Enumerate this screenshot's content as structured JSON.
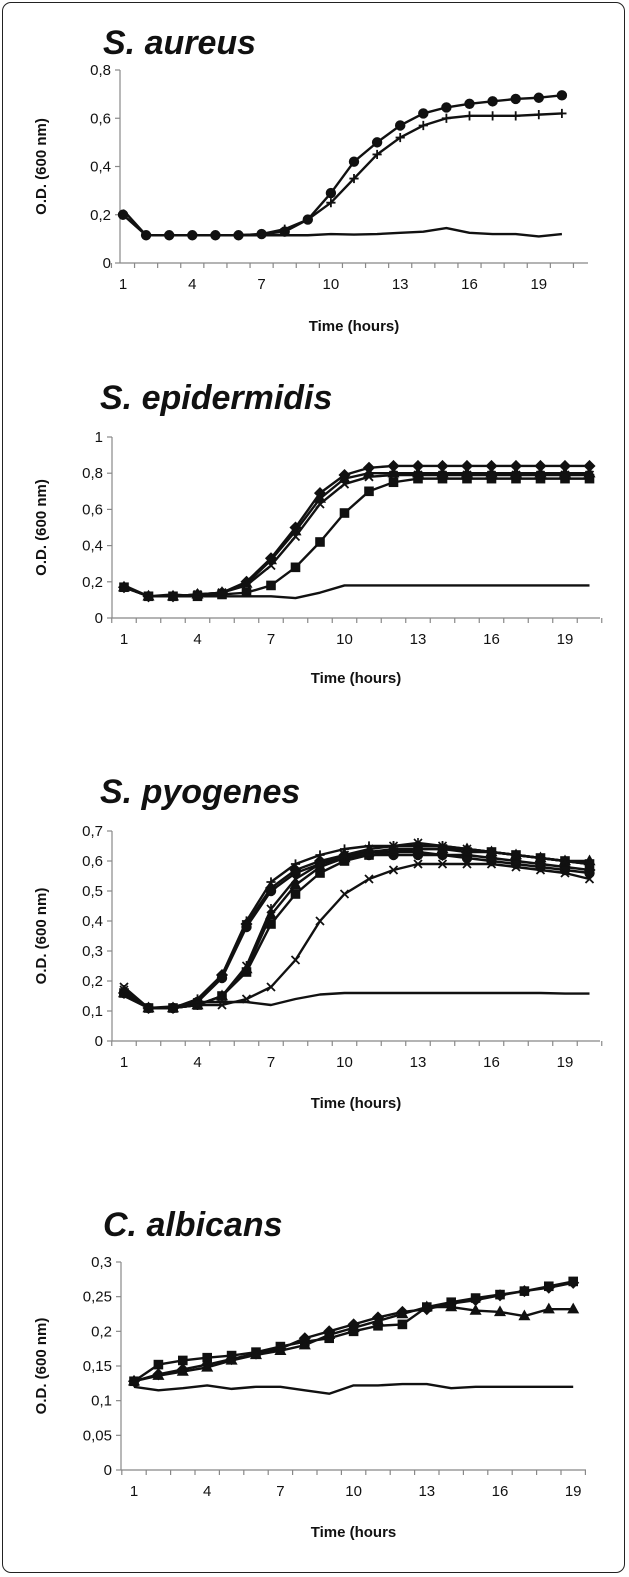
{
  "chart_data": [
    {
      "type": "line",
      "title": "S. aureus",
      "xlabel": "Time (hours)",
      "ylabel": "O.D. (600 nm)",
      "x": [
        1,
        2,
        3,
        4,
        5,
        6,
        7,
        8,
        9,
        10,
        11,
        12,
        13,
        14,
        15,
        16,
        17,
        18,
        19,
        20
      ],
      "xticks": [
        "1",
        "4",
        "7",
        "10",
        "13",
        "16",
        "19"
      ],
      "yticks": [
        "0",
        "0,2",
        "0,4",
        "0,6",
        "0,8"
      ],
      "ylim": [
        0,
        0.8
      ],
      "grid": false,
      "series": [
        {
          "marker": "circle",
          "values": [
            0.2,
            0.115,
            0.115,
            0.115,
            0.115,
            0.115,
            0.12,
            0.13,
            0.18,
            0.29,
            0.42,
            0.5,
            0.57,
            0.62,
            0.645,
            0.66,
            0.67,
            0.68,
            0.685,
            0.695
          ]
        },
        {
          "marker": "plus",
          "values": [
            0.2,
            0.115,
            0.115,
            0.115,
            0.115,
            0.115,
            0.12,
            0.14,
            0.18,
            0.25,
            0.35,
            0.45,
            0.52,
            0.57,
            0.6,
            0.61,
            0.61,
            0.61,
            0.615,
            0.62
          ]
        },
        {
          "marker": "none",
          "values": [
            0.22,
            0.115,
            0.115,
            0.115,
            0.115,
            0.115,
            0.115,
            0.115,
            0.115,
            0.12,
            0.118,
            0.12,
            0.125,
            0.13,
            0.145,
            0.125,
            0.12,
            0.12,
            0.11,
            0.12
          ]
        }
      ]
    },
    {
      "type": "line",
      "title": "S. epidermidis",
      "xlabel": "Time (hours)",
      "ylabel": "O.D. (600 nm)",
      "x": [
        1,
        2,
        3,
        4,
        5,
        6,
        7,
        8,
        9,
        10,
        11,
        12,
        13,
        14,
        15,
        16,
        17,
        18,
        19,
        20
      ],
      "xticks": [
        "1",
        "4",
        "7",
        "10",
        "13",
        "16",
        "19"
      ],
      "yticks": [
        "0",
        "0,2",
        "0,4",
        "0,6",
        "0,8",
        "1"
      ],
      "ylim": [
        0,
        1
      ],
      "grid": false,
      "series": [
        {
          "marker": "diamond",
          "values": [
            0.17,
            0.12,
            0.12,
            0.13,
            0.14,
            0.2,
            0.33,
            0.5,
            0.69,
            0.79,
            0.83,
            0.84,
            0.84,
            0.84,
            0.84,
            0.84,
            0.84,
            0.84,
            0.84,
            0.84
          ]
        },
        {
          "marker": "triangle",
          "values": [
            0.17,
            0.12,
            0.12,
            0.13,
            0.14,
            0.19,
            0.32,
            0.48,
            0.66,
            0.77,
            0.8,
            0.8,
            0.8,
            0.8,
            0.8,
            0.8,
            0.8,
            0.8,
            0.8,
            0.8
          ]
        },
        {
          "marker": "x",
          "values": [
            0.17,
            0.12,
            0.12,
            0.13,
            0.14,
            0.18,
            0.29,
            0.45,
            0.63,
            0.74,
            0.78,
            0.79,
            0.79,
            0.79,
            0.79,
            0.79,
            0.79,
            0.79,
            0.79,
            0.79
          ]
        },
        {
          "marker": "square",
          "values": [
            0.17,
            0.12,
            0.12,
            0.12,
            0.13,
            0.14,
            0.18,
            0.28,
            0.42,
            0.58,
            0.7,
            0.75,
            0.77,
            0.77,
            0.77,
            0.77,
            0.77,
            0.77,
            0.77,
            0.77
          ]
        },
        {
          "marker": "none",
          "values": [
            0.18,
            0.12,
            0.13,
            0.12,
            0.12,
            0.12,
            0.12,
            0.11,
            0.14,
            0.18,
            0.18,
            0.18,
            0.18,
            0.18,
            0.18,
            0.18,
            0.18,
            0.18,
            0.18,
            0.18
          ]
        }
      ]
    },
    {
      "type": "line",
      "title": "S. pyogenes",
      "xlabel": "Time (hours)",
      "ylabel": "O.D. (600 nm)",
      "x": [
        1,
        2,
        3,
        4,
        5,
        6,
        7,
        8,
        9,
        10,
        11,
        12,
        13,
        14,
        15,
        16,
        17,
        18,
        19,
        20
      ],
      "xticks": [
        "1",
        "4",
        "7",
        "10",
        "13",
        "16",
        "19"
      ],
      "yticks": [
        "0",
        "0,1",
        "0,2",
        "0,3",
        "0,4",
        "0,5",
        "0,6",
        "0,7"
      ],
      "ylim": [
        0,
        0.7
      ],
      "grid": false,
      "series": [
        {
          "marker": "diamond",
          "values": [
            0.16,
            0.11,
            0.11,
            0.13,
            0.22,
            0.39,
            0.51,
            0.57,
            0.6,
            0.62,
            0.63,
            0.63,
            0.63,
            0.62,
            0.62,
            0.61,
            0.6,
            0.59,
            0.58,
            0.57
          ]
        },
        {
          "marker": "plus",
          "values": [
            0.16,
            0.11,
            0.11,
            0.14,
            0.22,
            0.4,
            0.53,
            0.59,
            0.62,
            0.64,
            0.65,
            0.65,
            0.65,
            0.65,
            0.64,
            0.63,
            0.62,
            0.61,
            0.6,
            0.59
          ]
        },
        {
          "marker": "circle",
          "values": [
            0.16,
            0.11,
            0.11,
            0.13,
            0.21,
            0.38,
            0.5,
            0.56,
            0.59,
            0.61,
            0.62,
            0.62,
            0.62,
            0.62,
            0.61,
            0.6,
            0.59,
            0.58,
            0.57,
            0.56
          ]
        },
        {
          "marker": "square",
          "values": [
            0.16,
            0.11,
            0.11,
            0.12,
            0.15,
            0.23,
            0.39,
            0.49,
            0.56,
            0.6,
            0.62,
            0.63,
            0.64,
            0.64,
            0.63,
            0.63,
            0.62,
            0.61,
            0.6,
            0.59
          ]
        },
        {
          "marker": "triangle",
          "values": [
            0.16,
            0.11,
            0.11,
            0.12,
            0.15,
            0.24,
            0.42,
            0.52,
            0.58,
            0.61,
            0.63,
            0.64,
            0.64,
            0.64,
            0.64,
            0.63,
            0.62,
            0.61,
            0.6,
            0.6
          ]
        },
        {
          "marker": "asterisk",
          "values": [
            0.17,
            0.11,
            0.11,
            0.12,
            0.15,
            0.25,
            0.44,
            0.54,
            0.59,
            0.62,
            0.64,
            0.65,
            0.66,
            0.65,
            0.64,
            0.63,
            0.62,
            0.61,
            0.6,
            0.59
          ]
        },
        {
          "marker": "x",
          "values": [
            0.18,
            0.11,
            0.11,
            0.12,
            0.12,
            0.14,
            0.18,
            0.27,
            0.4,
            0.49,
            0.54,
            0.57,
            0.59,
            0.59,
            0.59,
            0.59,
            0.58,
            0.57,
            0.56,
            0.54
          ]
        },
        {
          "marker": "none",
          "values": [
            0.15,
            0.11,
            0.115,
            0.13,
            0.13,
            0.13,
            0.12,
            0.14,
            0.155,
            0.16,
            0.16,
            0.16,
            0.16,
            0.16,
            0.16,
            0.16,
            0.16,
            0.16,
            0.158,
            0.158
          ]
        }
      ]
    },
    {
      "type": "line",
      "title": "C. albicans",
      "xlabel": "Time (hours",
      "ylabel": "O.D. (600 nm)",
      "x": [
        1,
        2,
        3,
        4,
        5,
        6,
        7,
        8,
        9,
        10,
        11,
        12,
        13,
        14,
        15,
        16,
        17,
        18,
        19
      ],
      "xticks": [
        "1",
        "4",
        "7",
        "10",
        "13",
        "16",
        "19"
      ],
      "yticks": [
        "0",
        "0,05",
        "0,1",
        "0,15",
        "0,2",
        "0,25",
        "0,3"
      ],
      "ylim": [
        0,
        0.3
      ],
      "grid": false,
      "series": [
        {
          "marker": "square",
          "values": [
            0.128,
            0.152,
            0.158,
            0.162,
            0.165,
            0.17,
            0.178,
            0.185,
            0.19,
            0.2,
            0.208,
            0.21,
            0.235,
            0.242,
            0.248,
            0.253,
            0.258,
            0.265,
            0.272
          ]
        },
        {
          "marker": "diamond",
          "values": [
            0.128,
            0.138,
            0.145,
            0.152,
            0.16,
            0.168,
            0.175,
            0.19,
            0.2,
            0.21,
            0.22,
            0.228,
            0.232,
            0.24,
            0.245,
            0.252,
            0.258,
            0.263,
            0.27
          ]
        },
        {
          "marker": "triangle",
          "values": [
            0.128,
            0.136,
            0.142,
            0.148,
            0.158,
            0.166,
            0.172,
            0.18,
            0.195,
            0.205,
            0.215,
            0.225,
            0.235,
            0.235,
            0.23,
            0.228,
            0.222,
            0.232,
            0.232
          ]
        },
        {
          "marker": "none",
          "values": [
            0.12,
            0.115,
            0.118,
            0.122,
            0.117,
            0.12,
            0.12,
            0.115,
            0.11,
            0.122,
            0.122,
            0.124,
            0.124,
            0.118,
            0.12,
            0.12,
            0.12,
            0.12,
            0.12
          ]
        }
      ]
    }
  ]
}
